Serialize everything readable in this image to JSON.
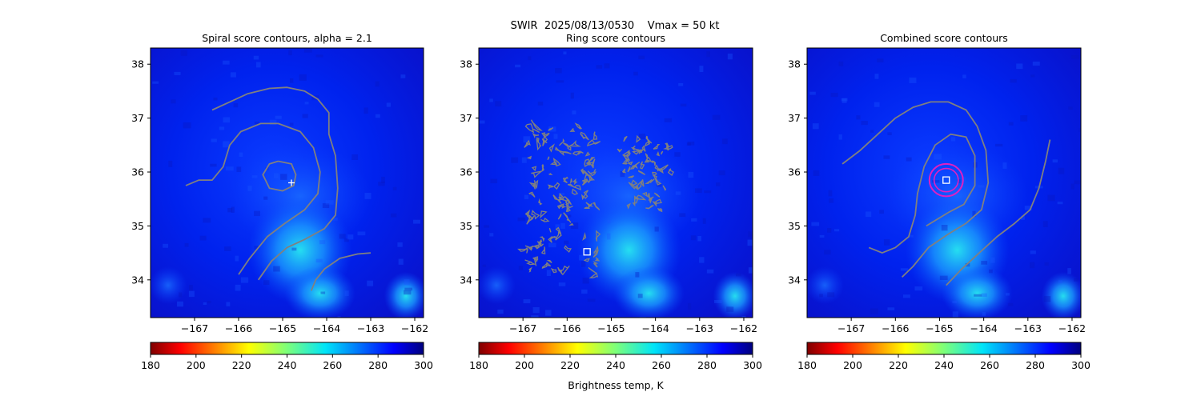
{
  "figure": {
    "suptitle": "SWIR  2025/08/13/0530    Vmax = 50 kt",
    "colorbar_label": "Brightness temp, K"
  },
  "chart_data": [
    {
      "type": "heatmap",
      "title": "Spiral score contours, alpha =  2.1",
      "field": "Brightness temp, K",
      "colormap": "jet (reversed: 180 K dark red, 300 K dark blue)",
      "xlim": [
        -168.0,
        -161.8
      ],
      "ylim": [
        33.3,
        38.3
      ],
      "xticks": [
        "−167",
        "−166",
        "−165",
        "−164",
        "−163",
        "−162"
      ],
      "yticks": [
        "34",
        "35",
        "36",
        "37",
        "38"
      ],
      "colorbar": {
        "range": [
          180,
          300
        ],
        "ticks": [
          "180",
          "200",
          "220",
          "240",
          "260",
          "280",
          "300"
        ]
      },
      "contour_color": "#808080",
      "contours": [
        [
          [
            -165.1,
            36.2
          ],
          [
            -164.8,
            36.15
          ],
          [
            -164.7,
            35.95
          ],
          [
            -164.75,
            35.75
          ],
          [
            -165.0,
            35.65
          ],
          [
            -165.3,
            35.7
          ],
          [
            -165.45,
            35.95
          ],
          [
            -165.3,
            36.15
          ],
          [
            -165.1,
            36.2
          ]
        ],
        [
          [
            -167.2,
            35.75
          ],
          [
            -166.9,
            35.85
          ],
          [
            -166.6,
            35.85
          ],
          [
            -166.35,
            36.1
          ],
          [
            -166.2,
            36.5
          ],
          [
            -165.95,
            36.75
          ],
          [
            -165.5,
            36.9
          ],
          [
            -165.1,
            36.9
          ],
          [
            -164.6,
            36.75
          ],
          [
            -164.3,
            36.45
          ],
          [
            -164.15,
            36.0
          ],
          [
            -164.2,
            35.6
          ],
          [
            -164.5,
            35.3
          ],
          [
            -164.95,
            35.05
          ],
          [
            -165.35,
            34.8
          ],
          [
            -165.75,
            34.4
          ],
          [
            -166.0,
            34.1
          ]
        ],
        [
          [
            -166.6,
            37.15
          ],
          [
            -166.2,
            37.3
          ],
          [
            -165.8,
            37.45
          ],
          [
            -165.3,
            37.55
          ],
          [
            -164.9,
            37.57
          ],
          [
            -164.5,
            37.5
          ],
          [
            -164.2,
            37.35
          ],
          [
            -163.95,
            37.1
          ],
          [
            -163.95,
            36.7
          ],
          [
            -163.8,
            36.3
          ],
          [
            -163.75,
            35.7
          ],
          [
            -163.8,
            35.2
          ],
          [
            -164.05,
            34.95
          ],
          [
            -164.5,
            34.75
          ],
          [
            -164.9,
            34.6
          ],
          [
            -165.25,
            34.35
          ],
          [
            -165.55,
            34.0
          ]
        ],
        [
          [
            -163.0,
            34.5
          ],
          [
            -163.3,
            34.48
          ],
          [
            -163.7,
            34.4
          ],
          [
            -164.05,
            34.2
          ],
          [
            -164.25,
            34.0
          ],
          [
            -164.35,
            33.8
          ]
        ]
      ],
      "center_marker": {
        "lon": -164.8,
        "lat": 35.8,
        "symbol": "plus"
      }
    },
    {
      "type": "heatmap",
      "title": "Ring score contours",
      "field": "Brightness temp, K",
      "colormap": "jet (reversed: 180 K dark red, 300 K dark blue)",
      "xlim": [
        -168.0,
        -161.8
      ],
      "ylim": [
        33.3,
        38.3
      ],
      "xticks": [
        "−167",
        "−166",
        "−165",
        "−164",
        "−163",
        "−162"
      ],
      "yticks": [
        "34",
        "35",
        "36",
        "37",
        "38"
      ],
      "colorbar": {
        "range": [
          180,
          300
        ],
        "ticks": [
          "180",
          "200",
          "220",
          "240",
          "260",
          "280",
          "300"
        ]
      },
      "contour_color": "#808080",
      "contour_regions": [
        {
          "lon_range": [
            -166.9,
            -165.3
          ],
          "lat_range": [
            34.1,
            36.8
          ],
          "style": "dense fragmented"
        },
        {
          "lon_range": [
            -164.8,
            -163.7
          ],
          "lat_range": [
            35.3,
            36.6
          ],
          "style": "fragmented"
        }
      ],
      "center_marker": {
        "lon": -165.55,
        "lat": 34.52,
        "symbol": "square"
      }
    },
    {
      "type": "heatmap",
      "title": "Combined score contours",
      "field": "Brightness temp, K",
      "colormap": "jet (reversed: 180 K dark red, 300 K dark blue)",
      "xlim": [
        -168.0,
        -161.8
      ],
      "ylim": [
        33.3,
        38.3
      ],
      "xticks": [
        "−167",
        "−166",
        "−165",
        "−164",
        "−163",
        "−162"
      ],
      "yticks": [
        "34",
        "35",
        "36",
        "37",
        "38"
      ],
      "colorbar": {
        "range": [
          180,
          300
        ],
        "ticks": [
          "180",
          "200",
          "220",
          "240",
          "260",
          "280",
          "300"
        ]
      },
      "contour_color": "#808080",
      "contours": [
        [
          [
            -167.2,
            36.15
          ],
          [
            -166.8,
            36.4
          ],
          [
            -166.4,
            36.7
          ],
          [
            -166.0,
            37.0
          ],
          [
            -165.6,
            37.2
          ],
          [
            -165.2,
            37.3
          ],
          [
            -164.8,
            37.3
          ],
          [
            -164.4,
            37.15
          ],
          [
            -164.15,
            36.85
          ],
          [
            -163.95,
            36.4
          ],
          [
            -163.9,
            35.8
          ],
          [
            -164.05,
            35.3
          ],
          [
            -164.4,
            35.05
          ],
          [
            -164.8,
            34.85
          ],
          [
            -165.25,
            34.6
          ],
          [
            -165.6,
            34.25
          ],
          [
            -165.85,
            34.05
          ]
        ],
        [
          [
            -166.6,
            34.6
          ],
          [
            -166.3,
            34.5
          ],
          [
            -166.0,
            34.6
          ],
          [
            -165.7,
            34.8
          ],
          [
            -165.55,
            35.2
          ],
          [
            -165.5,
            35.6
          ],
          [
            -165.35,
            36.1
          ],
          [
            -165.1,
            36.5
          ],
          [
            -164.75,
            36.7
          ],
          [
            -164.4,
            36.65
          ],
          [
            -164.2,
            36.3
          ],
          [
            -164.2,
            35.75
          ],
          [
            -164.45,
            35.4
          ],
          [
            -164.8,
            35.25
          ],
          [
            -165.3,
            35.0
          ]
        ],
        [
          [
            -162.5,
            36.6
          ],
          [
            -162.6,
            36.2
          ],
          [
            -162.75,
            35.7
          ],
          [
            -162.95,
            35.3
          ],
          [
            -163.3,
            35.05
          ],
          [
            -163.7,
            34.8
          ],
          [
            -164.1,
            34.5
          ],
          [
            -164.5,
            34.2
          ],
          [
            -164.85,
            33.9
          ]
        ]
      ],
      "highlight_contour": {
        "color": "#e020c0",
        "center": [
          -164.85,
          35.85
        ],
        "radius_deg": [
          0.38,
          0.3
        ]
      },
      "center_marker": {
        "lon": -164.85,
        "lat": 35.85,
        "symbol": "square"
      }
    }
  ]
}
